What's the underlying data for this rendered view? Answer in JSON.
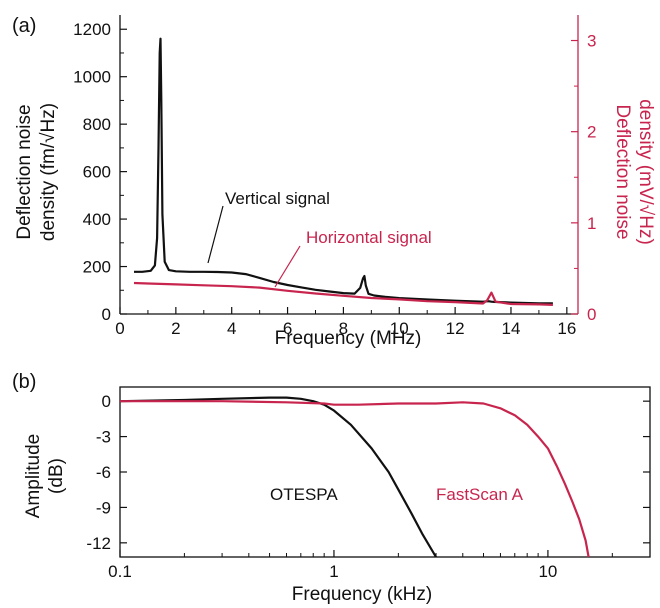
{
  "colors": {
    "black": "#111111",
    "red": "#c8254e"
  },
  "chart_data": [
    {
      "type": "line",
      "panel_label": "(a)",
      "xlabel": "Frequency (MHz)",
      "ylabel_lines": [
        "Deflection noise",
        "density (fm/√Hz)"
      ],
      "y2label_lines": [
        "Deflection noise",
        "density (mV/√Hz)"
      ],
      "xlim": [
        0,
        16.4
      ],
      "ylim": [
        0,
        1260
      ],
      "y2lim": [
        0,
        3.28
      ],
      "xticks": [
        "0",
        "2",
        "4",
        "6",
        "8",
        "10",
        "12",
        "14",
        "16"
      ],
      "yticks": [
        "0",
        "200",
        "400",
        "600",
        "800",
        "1000",
        "1200"
      ],
      "y2ticks": [
        "0",
        "1",
        "2",
        "3"
      ],
      "grid": false,
      "series": [
        {
          "name": "Vertical signal",
          "axis": "left",
          "color": "#111111",
          "x": [
            0.5,
            0.8,
            1.1,
            1.25,
            1.33,
            1.38,
            1.42,
            1.45,
            1.48,
            1.52,
            1.6,
            1.75,
            2.0,
            2.5,
            3.0,
            3.5,
            4.0,
            4.5,
            5.0,
            5.5,
            6.0,
            6.5,
            7.0,
            7.5,
            8.0,
            8.4,
            8.6,
            8.7,
            8.75,
            8.8,
            8.9,
            9.1,
            9.5,
            10.0,
            11.0,
            12.0,
            13.0,
            13.2,
            13.3,
            13.4,
            14.0,
            15.0,
            15.5
          ],
          "values": [
            178,
            178,
            182,
            205,
            320,
            700,
            1100,
            1160,
            900,
            420,
            220,
            185,
            180,
            178,
            178,
            177,
            175,
            168,
            152,
            135,
            122,
            112,
            102,
            95,
            88,
            86,
            110,
            150,
            160,
            120,
            85,
            78,
            72,
            67,
            61,
            56,
            52,
            54,
            52,
            51,
            48,
            45,
            45
          ]
        },
        {
          "name": "Horizontal signal",
          "axis": "right",
          "color": "#c8254e",
          "x": [
            0.5,
            1.0,
            2.0,
            3.0,
            4.0,
            5.0,
            6.0,
            7.0,
            8.0,
            9.0,
            10.0,
            11.0,
            12.0,
            13.0,
            13.15,
            13.3,
            13.45,
            14.0,
            15.0,
            15.5
          ],
          "values": [
            0.34,
            0.335,
            0.325,
            0.315,
            0.305,
            0.29,
            0.255,
            0.225,
            0.2,
            0.175,
            0.16,
            0.14,
            0.13,
            0.115,
            0.15,
            0.235,
            0.135,
            0.11,
            0.105,
            0.1
          ]
        }
      ]
    },
    {
      "type": "line",
      "panel_label": "(b)",
      "xlabel": "Frequency (kHz)",
      "ylabel_lines": [
        "Amplitude",
        "(dB)"
      ],
      "xscale": "log",
      "xlim": [
        0.1,
        30
      ],
      "ylim": [
        -13.2,
        1.2
      ],
      "xticks": [
        "0.1",
        "1",
        "10"
      ],
      "yticks": [
        "0",
        "-3",
        "-6",
        "-9",
        "-12"
      ],
      "grid": false,
      "series": [
        {
          "name": "OTESPA",
          "color": "#111111",
          "x": [
            0.1,
            0.2,
            0.3,
            0.5,
            0.6,
            0.7,
            0.8,
            0.9,
            1.0,
            1.2,
            1.5,
            1.8,
            2.0,
            2.3,
            2.6,
            3.0
          ],
          "values": [
            0.0,
            0.1,
            0.2,
            0.3,
            0.3,
            0.2,
            0.0,
            -0.3,
            -0.8,
            -2.0,
            -4.0,
            -6.0,
            -7.5,
            -9.5,
            -11.3,
            -13.2
          ]
        },
        {
          "name": "FastScan A",
          "color": "#c8254e",
          "x": [
            0.1,
            0.3,
            0.6,
            0.9,
            1.0,
            1.3,
            2.0,
            3.0,
            4.0,
            5.0,
            6.0,
            7.0,
            8.0,
            9.0,
            10.0,
            11.0,
            12.0,
            13.0,
            14.0,
            15.0,
            15.5
          ],
          "values": [
            0.0,
            0.0,
            -0.1,
            -0.2,
            -0.3,
            -0.3,
            -0.2,
            -0.2,
            -0.1,
            -0.2,
            -0.6,
            -1.2,
            -2.0,
            -3.0,
            -4.0,
            -5.5,
            -7.0,
            -8.5,
            -10.0,
            -11.8,
            -13.2
          ]
        }
      ]
    }
  ]
}
